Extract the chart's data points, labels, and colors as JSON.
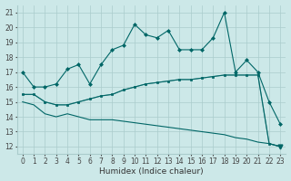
{
  "xlabel": "Humidex (Indice chaleur)",
  "background_color": "#cce8e8",
  "grid_color": "#aacccc",
  "line_color": "#006666",
  "xlim": [
    -0.5,
    23.5
  ],
  "ylim": [
    11.5,
    21.5
  ],
  "xticks": [
    0,
    1,
    2,
    3,
    4,
    5,
    6,
    7,
    8,
    9,
    10,
    11,
    12,
    13,
    14,
    15,
    16,
    17,
    18,
    19,
    20,
    21,
    22,
    23
  ],
  "yticks": [
    12,
    13,
    14,
    15,
    16,
    17,
    18,
    19,
    20,
    21
  ],
  "line1_x": [
    0,
    1,
    2,
    3,
    4,
    5,
    6,
    7,
    8,
    9,
    10,
    11,
    12,
    13,
    14,
    15,
    16,
    17,
    18,
    19,
    20,
    21,
    22,
    23
  ],
  "line1_y": [
    17.0,
    16.0,
    16.0,
    16.2,
    17.2,
    17.5,
    16.2,
    17.5,
    18.5,
    18.8,
    20.2,
    19.5,
    19.3,
    19.8,
    18.5,
    18.5,
    18.5,
    19.3,
    21.0,
    17.0,
    17.8,
    17.0,
    15.0,
    13.5
  ],
  "line2_x": [
    0,
    1,
    2,
    3,
    4,
    5,
    6,
    7,
    8,
    9,
    10,
    11,
    12,
    13,
    14,
    15,
    16,
    17,
    18,
    19,
    20,
    21,
    22,
    23
  ],
  "line2_y": [
    15.5,
    15.5,
    15.0,
    14.8,
    14.8,
    15.0,
    15.2,
    15.4,
    15.5,
    15.8,
    16.0,
    16.2,
    16.3,
    16.4,
    16.5,
    16.5,
    16.6,
    16.7,
    16.8,
    16.8,
    16.8,
    16.8,
    12.2,
    12.0
  ],
  "line3_x": [
    0,
    1,
    2,
    3,
    4,
    5,
    6,
    7,
    8,
    9,
    10,
    11,
    12,
    13,
    14,
    15,
    16,
    17,
    18,
    19,
    20,
    21,
    22,
    23
  ],
  "line3_y": [
    15.0,
    14.8,
    14.2,
    14.0,
    14.2,
    14.0,
    13.8,
    13.8,
    13.8,
    13.7,
    13.6,
    13.5,
    13.4,
    13.3,
    13.2,
    13.1,
    13.0,
    12.9,
    12.8,
    12.6,
    12.5,
    12.3,
    12.2,
    12.0
  ]
}
